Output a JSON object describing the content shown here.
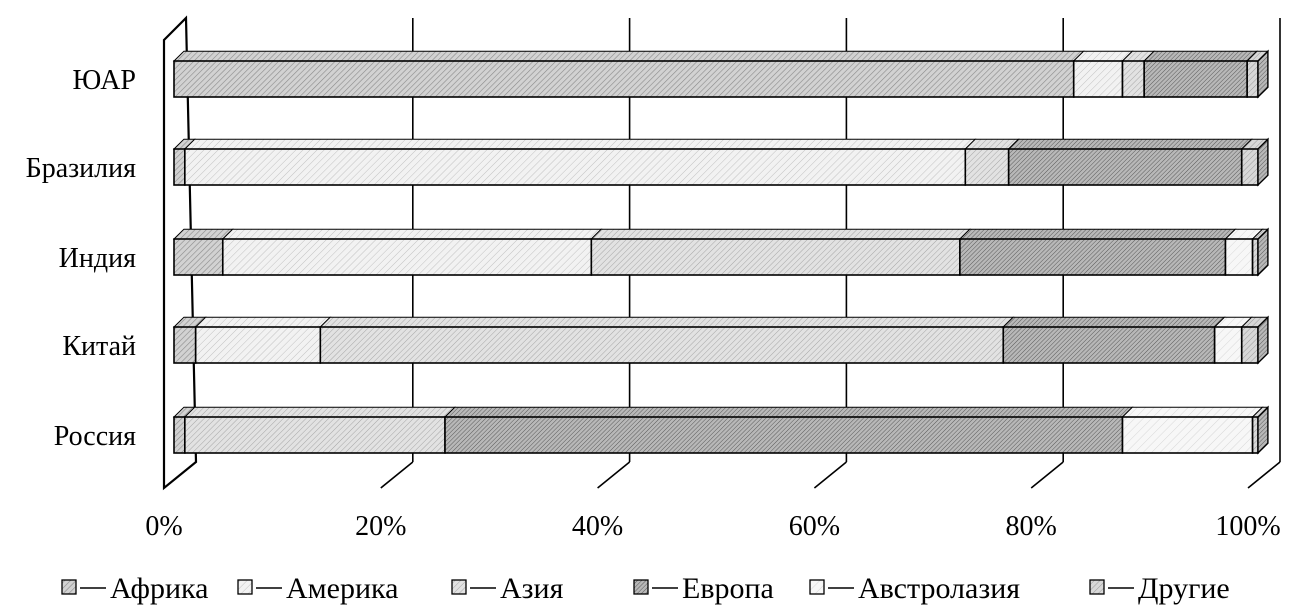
{
  "chart_data": {
    "type": "bar",
    "orientation": "horizontal",
    "stacked": "percent",
    "three_d": true,
    "categories": [
      "ЮАР",
      "Бразилия",
      "Индия",
      "Китай",
      "Россия"
    ],
    "series": [
      {
        "name": "Африка",
        "fill": "#c8c8c8",
        "values": [
          83,
          1,
          4.5,
          2,
          1
        ]
      },
      {
        "name": "Америка",
        "fill": "#ececec",
        "values": [
          4.5,
          72,
          34,
          11.5,
          0
        ]
      },
      {
        "name": "Азия",
        "fill": "#dedede",
        "values": [
          2,
          4,
          34,
          63,
          24
        ]
      },
      {
        "name": "Европа",
        "fill": "#b4b4b4",
        "values": [
          9.5,
          21.5,
          24.5,
          19.5,
          62.5
        ]
      },
      {
        "name": "Австролазия",
        "fill": "#f2f2f2",
        "values": [
          0,
          0,
          2.5,
          2.5,
          12
        ]
      },
      {
        "name": "Другие",
        "fill": "#cccccc",
        "values": [
          1,
          1.5,
          0.5,
          1.5,
          0.5
        ]
      }
    ],
    "xaxis": {
      "ticks": [
        0,
        20,
        40,
        60,
        80,
        100
      ],
      "tick_labels": [
        "0%",
        "20%",
        "40%",
        "60%",
        "80%",
        "100%"
      ],
      "range": [
        0,
        100
      ]
    },
    "grid": true,
    "legend": "bottom"
  }
}
